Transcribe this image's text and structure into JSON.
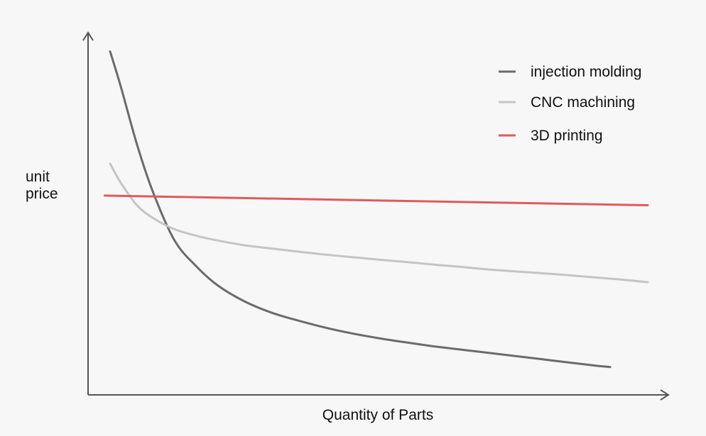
{
  "chart_data": {
    "type": "line",
    "title": "",
    "xlabel": "Quantity of Parts",
    "ylabel": "unit price",
    "ylabel_lines": [
      "unit",
      "price"
    ],
    "grid": false,
    "legend_position": "top-right",
    "xlim": [
      0,
      100
    ],
    "ylim": [
      0,
      100
    ],
    "x": [
      0,
      2,
      5,
      8,
      12,
      16,
      20,
      25,
      30,
      35,
      40,
      45,
      50,
      55,
      60,
      65,
      70,
      75,
      80,
      85,
      90,
      95,
      100
    ],
    "series": [
      {
        "name": "injection molding",
        "color": "#6b6b6b",
        "x": [
          0,
          2,
          5,
          8,
          12,
          16,
          20,
          25,
          30,
          35,
          40,
          45,
          50,
          55,
          60,
          65,
          70,
          75,
          80,
          85,
          90,
          93
        ],
        "values": [
          99,
          88,
          70,
          55,
          40,
          32,
          26,
          21,
          17.5,
          15,
          12.8,
          11,
          9.5,
          8.2,
          7,
          6,
          5,
          4,
          3,
          2,
          1,
          0.5
        ]
      },
      {
        "name": "CNC machining",
        "color": "#c4c4c4",
        "x": [
          0,
          2,
          5,
          8,
          12,
          16,
          20,
          25,
          30,
          35,
          40,
          45,
          50,
          55,
          60,
          65,
          70,
          75,
          80,
          85,
          90,
          95,
          100
        ],
        "values": [
          64,
          58,
          51,
          47,
          43.5,
          41.5,
          40,
          38.5,
          37.5,
          36.5,
          35.6,
          34.8,
          34,
          33.3,
          32.5,
          31.8,
          31,
          30.4,
          29.8,
          29.2,
          28.5,
          27.8,
          27
        ]
      },
      {
        "name": "3D printing",
        "color": "#e05a5a",
        "x": [
          -1,
          100
        ],
        "values": [
          54,
          51
        ]
      }
    ]
  }
}
